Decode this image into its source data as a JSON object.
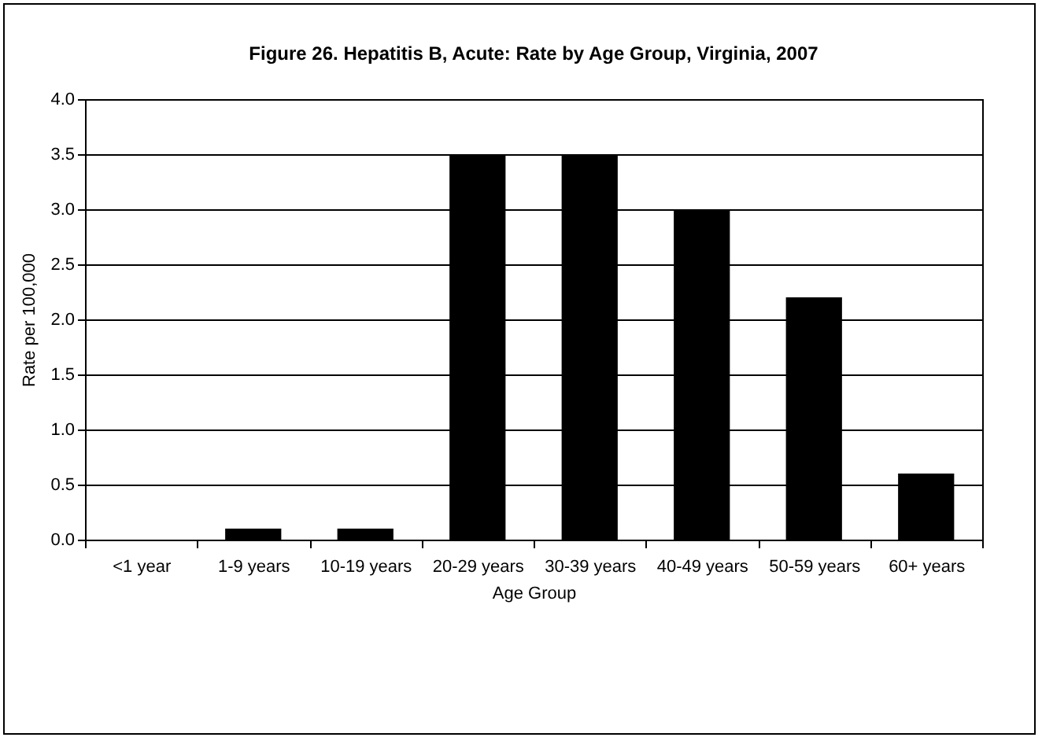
{
  "chart_data": {
    "type": "bar",
    "title": "Figure 26. Hepatitis B, Acute: Rate by Age Group, Virginia, 2007",
    "xlabel": "Age Group",
    "ylabel": "Rate per 100,000",
    "categories": [
      "<1 year",
      "1-9\nyears",
      "10-19\nyears",
      "20-29\nyears",
      "30-39\nyears",
      "40-49\nyears",
      "50-59\nyears",
      "60+\nyears"
    ],
    "values": [
      0,
      0.1,
      0.1,
      3.5,
      3.5,
      3.0,
      2.2,
      0.6
    ],
    "color": "#000000",
    "ylim": [
      0,
      4
    ],
    "yticks": [
      {
        "value": 0,
        "label": "0.0"
      },
      {
        "value": 0.5,
        "label": "0.5"
      },
      {
        "value": 1,
        "label": "1.0"
      },
      {
        "value": 1.5,
        "label": "1.5"
      },
      {
        "value": 2,
        "label": "2.0"
      },
      {
        "value": 2.5,
        "label": "2.5"
      },
      {
        "value": 3,
        "label": "3.0"
      },
      {
        "value": 3.5,
        "label": "3.5"
      },
      {
        "value": 4,
        "label": "4.0"
      }
    ],
    "grid": "y"
  }
}
